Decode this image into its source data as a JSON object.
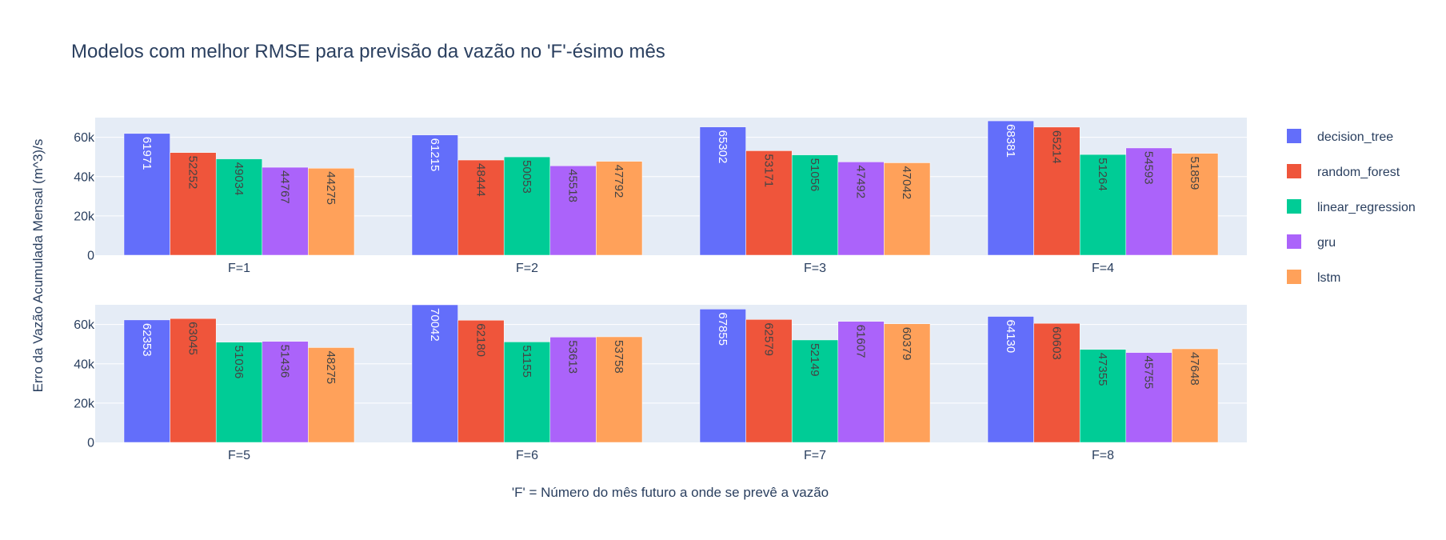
{
  "chart_data": {
    "type": "bar",
    "title": "Modelos com melhor RMSE para previsão da vazão no 'F'-ésimo mês",
    "xlabel": "'F' = Número do mês futuro a onde se prevê a vazão",
    "ylabel": "Erro da Vazão Acumulada Mensal (m^3)/s",
    "ylim": [
      0,
      70042
    ],
    "y_ticks": [
      "0",
      "20k",
      "40k",
      "60k"
    ],
    "y_tick_values": [
      0,
      20000,
      40000,
      60000
    ],
    "grid": true,
    "legend_position": "right",
    "series": [
      {
        "name": "decision_tree",
        "color": "#636efa",
        "text_color": "#ffffff"
      },
      {
        "name": "random_forest",
        "color": "#ef553b",
        "text_color": "#444444"
      },
      {
        "name": "linear_regression",
        "color": "#00cc96",
        "text_color": "#444444"
      },
      {
        "name": "gru",
        "color": "#ab63fa",
        "text_color": "#444444"
      },
      {
        "name": "lstm",
        "color": "#ffa15a",
        "text_color": "#444444"
      }
    ],
    "panels": [
      {
        "category": "F=1",
        "values": [
          61971,
          52252,
          49034,
          44767,
          44275
        ]
      },
      {
        "category": "F=2",
        "values": [
          61215,
          48444,
          50053,
          45518,
          47792
        ]
      },
      {
        "category": "F=3",
        "values": [
          65302,
          53171,
          51056,
          47492,
          47042
        ]
      },
      {
        "category": "F=4",
        "values": [
          68381,
          65214,
          51264,
          54593,
          51859
        ]
      },
      {
        "category": "F=5",
        "values": [
          62353,
          63045,
          51036,
          51436,
          48275
        ]
      },
      {
        "category": "F=6",
        "values": [
          70042,
          62180,
          51155,
          53613,
          53758
        ]
      },
      {
        "category": "F=7",
        "values": [
          67855,
          62579,
          52149,
          61607,
          60379
        ]
      },
      {
        "category": "F=8",
        "values": [
          64130,
          60603,
          47355,
          45755,
          47648
        ]
      }
    ]
  }
}
